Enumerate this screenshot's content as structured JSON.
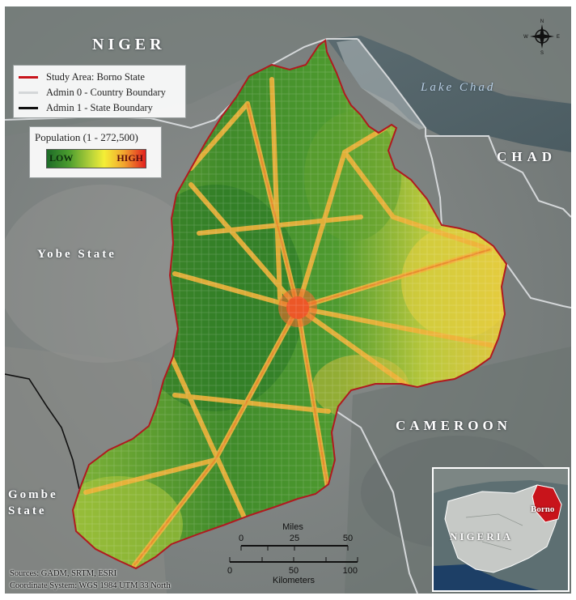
{
  "map": {
    "country_labels": {
      "niger": "NIGER",
      "chad": "CHAD",
      "cameroon": "CAMEROON"
    },
    "state_labels": {
      "yobe": "Yobe State",
      "gombe": "Gombe State"
    },
    "water_label": "Lake Chad",
    "legend": {
      "items": [
        {
          "label": "Study Area: Borno State",
          "color": "#c8141b"
        },
        {
          "label": "Admin 0 - Country Boundary",
          "color": "#d4d7d9"
        },
        {
          "label": "Admin 1 - State Boundary",
          "color": "#111111"
        }
      ]
    },
    "population_legend": {
      "title": "Population  (1 - 272,500)",
      "low_label": "LOW",
      "high_label": "HIGH",
      "colors": [
        "#1d6b28",
        "#4a9c2e",
        "#b8d33a",
        "#f4ee36",
        "#f2a52e",
        "#e2201f"
      ]
    },
    "compass": {
      "n": "N",
      "s": "S",
      "e": "E",
      "w": "W"
    },
    "inset": {
      "country_label": "NIGERIA",
      "state_label": "Borno",
      "highlight_color": "#c8141b"
    },
    "scale_bar": {
      "miles_label": "Miles",
      "miles_ticks": [
        "0",
        "25",
        "50"
      ],
      "km_label": "Kilometers",
      "km_ticks": [
        "0",
        "50",
        "100"
      ]
    },
    "sources": "Sources: GADM, SRTM, ESRI",
    "coordinate_system": "Coordinate System: WGS 1984 UTM 33 North"
  }
}
